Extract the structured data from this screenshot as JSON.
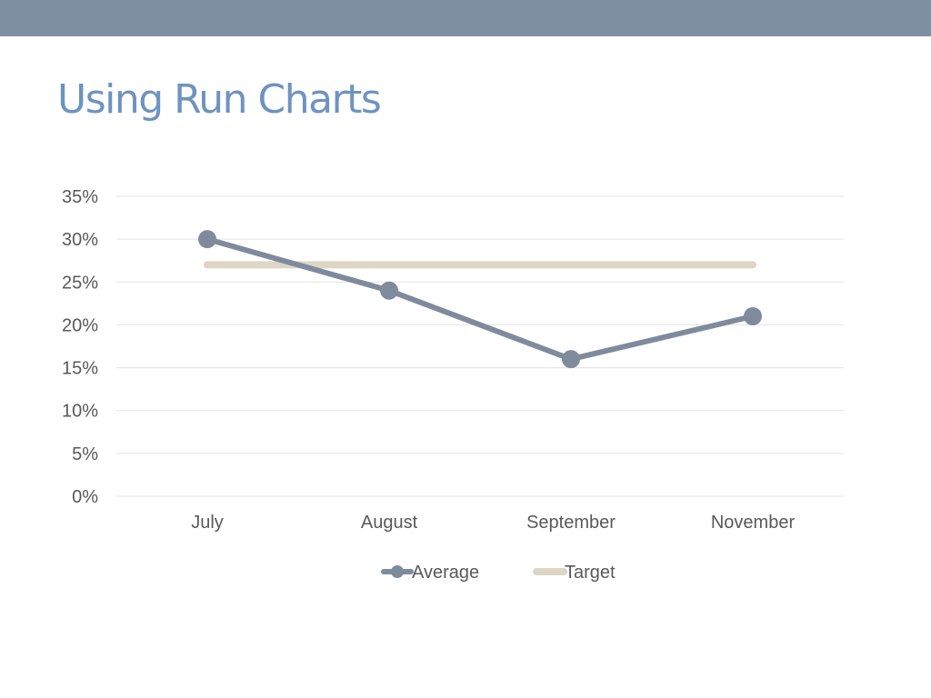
{
  "slide": {
    "title": "Using Run Charts",
    "colors": {
      "top_bar": "#818FA2",
      "title": "#6F93C0",
      "grid": "#E3E3E3",
      "average": "#7F8B9D",
      "target": "#DDD6C5",
      "text": "#595959"
    }
  },
  "chart_data": {
    "type": "line",
    "title": "",
    "xlabel": "",
    "ylabel": "",
    "categories": [
      "July",
      "August",
      "September",
      "November"
    ],
    "ylim": [
      0,
      0.35
    ],
    "yticks": [
      0,
      0.05,
      0.1,
      0.15,
      0.2,
      0.25,
      0.3,
      0.35
    ],
    "ytick_labels": [
      "0%",
      "5%",
      "10%",
      "15%",
      "20%",
      "25%",
      "30%",
      "35%"
    ],
    "grid": true,
    "legend": "bottom",
    "series": [
      {
        "name": "Average",
        "values": [
          0.3,
          0.24,
          0.16,
          0.21
        ],
        "color": "#7F8B9D",
        "markers": true
      },
      {
        "name": "Target",
        "values": [
          0.27,
          0.27,
          0.27,
          0.27
        ],
        "color": "#DDD6C5",
        "markers": false
      }
    ]
  }
}
